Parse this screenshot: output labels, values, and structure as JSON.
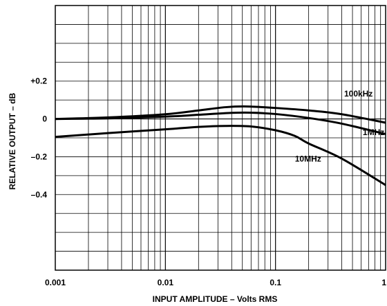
{
  "chart_data": {
    "type": "line",
    "title": "",
    "xlabel": "INPUT AMPLITUDE – Volts RMS",
    "ylabel": "RELATIVE OUTPUT – dB",
    "xscale": "log",
    "xlim": [
      0.001,
      1
    ],
    "ylim": [
      -0.8,
      0.6
    ],
    "x_ticks": [
      {
        "value": 0.001,
        "label": "0.001"
      },
      {
        "value": 0.01,
        "label": "0.01"
      },
      {
        "value": 0.1,
        "label": "0.1"
      },
      {
        "value": 1,
        "label": "1"
      }
    ],
    "y_ticks": [
      {
        "value": 0.2,
        "label": "+0.2"
      },
      {
        "value": 0,
        "label": "0"
      },
      {
        "value": -0.2,
        "label": "–0.2"
      },
      {
        "value": -0.4,
        "label": "–0.4"
      }
    ],
    "grid": true,
    "series": [
      {
        "name": "100kHz",
        "x": [
          0.001,
          0.003,
          0.01,
          0.02,
          0.035,
          0.055,
          0.1,
          0.2,
          0.4,
          1
        ],
        "y": [
          0.0,
          0.008,
          0.025,
          0.045,
          0.062,
          0.066,
          0.058,
          0.045,
          0.025,
          -0.02
        ]
      },
      {
        "name": "1MHz",
        "x": [
          0.001,
          0.003,
          0.01,
          0.02,
          0.04,
          0.06,
          0.1,
          0.2,
          0.4,
          1
        ],
        "y": [
          0.0,
          0.003,
          0.012,
          0.022,
          0.032,
          0.033,
          0.026,
          0.005,
          -0.025,
          -0.08
        ]
      },
      {
        "name": "10MHz",
        "x": [
          0.001,
          0.003,
          0.01,
          0.02,
          0.035,
          0.06,
          0.1,
          0.15,
          0.2,
          0.4,
          1
        ],
        "y": [
          -0.095,
          -0.075,
          -0.055,
          -0.042,
          -0.037,
          -0.04,
          -0.06,
          -0.09,
          -0.13,
          -0.21,
          -0.35
        ]
      }
    ]
  }
}
